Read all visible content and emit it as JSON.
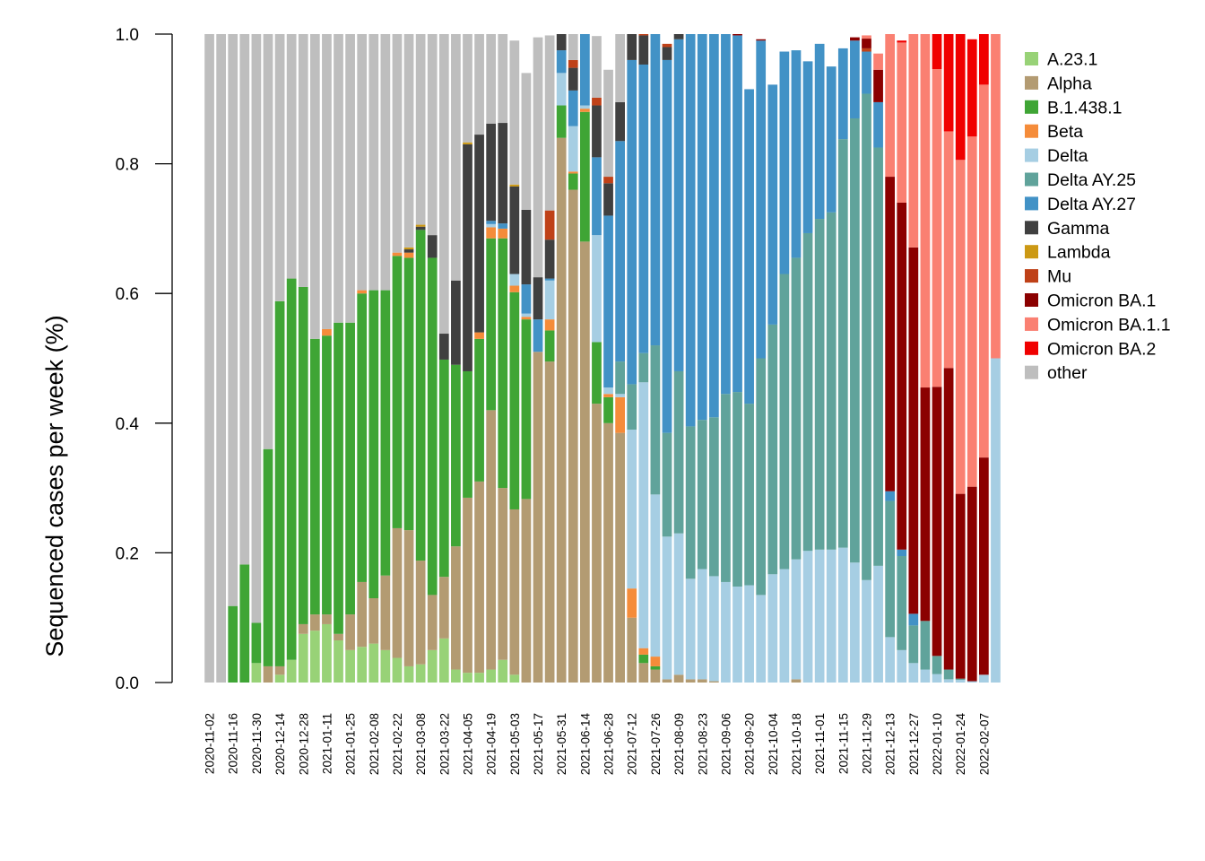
{
  "chart_data": {
    "type": "bar",
    "stacked": true,
    "ylabel": "Sequenced cases per week (%)",
    "xlabel": "",
    "ylim": [
      0,
      1
    ],
    "y_ticks": [
      "0.0",
      "0.2",
      "0.4",
      "0.6",
      "0.8",
      "1.0"
    ],
    "legend_position": "right",
    "x_tick_labels": [
      "2020-11-02",
      "2020-11-16",
      "2020-11-30",
      "2020-12-14",
      "2020-12-28",
      "2021-01-11",
      "2021-01-25",
      "2021-02-08",
      "2021-02-22",
      "2021-03-08",
      "2021-03-22",
      "2021-04-05",
      "2021-04-19",
      "2021-05-03",
      "2021-05-17",
      "2021-05-31",
      "2021-06-14",
      "2021-06-28",
      "2021-07-12",
      "2021-07-26",
      "2021-08-09",
      "2021-08-23",
      "2021-09-06",
      "2021-09-20",
      "2021-10-04",
      "2021-10-18",
      "2021-11-01",
      "2021-11-15",
      "2021-11-29",
      "2021-12-13",
      "2021-12-27",
      "2022-01-10",
      "2022-01-24",
      "2022-02-07"
    ],
    "categories": [
      "2020-11-02",
      "2020-11-09",
      "2020-11-16",
      "2020-11-23",
      "2020-11-30",
      "2020-12-07",
      "2020-12-14",
      "2020-12-21",
      "2020-12-28",
      "2021-01-04",
      "2021-01-11",
      "2021-01-18",
      "2021-01-25",
      "2021-02-01",
      "2021-02-08",
      "2021-02-15",
      "2021-02-22",
      "2021-03-01",
      "2021-03-08",
      "2021-03-15",
      "2021-03-22",
      "2021-03-29",
      "2021-04-05",
      "2021-04-12",
      "2021-04-19",
      "2021-04-26",
      "2021-05-03",
      "2021-05-10",
      "2021-05-17",
      "2021-05-24",
      "2021-05-31",
      "2021-06-07",
      "2021-06-14",
      "2021-06-21",
      "2021-06-28",
      "2021-07-05",
      "2021-07-12",
      "2021-07-19",
      "2021-07-26",
      "2021-08-02",
      "2021-08-09",
      "2021-08-16",
      "2021-08-23",
      "2021-08-30",
      "2021-09-06",
      "2021-09-13",
      "2021-09-20",
      "2021-09-27",
      "2021-10-04",
      "2021-10-11",
      "2021-10-18",
      "2021-10-25",
      "2021-11-01",
      "2021-11-08",
      "2021-11-15",
      "2021-11-22",
      "2021-11-29",
      "2021-12-06",
      "2021-12-13",
      "2021-12-20",
      "2021-12-27",
      "2022-01-03",
      "2022-01-10",
      "2022-01-17",
      "2022-01-24",
      "2022-01-31",
      "2022-02-07",
      "2022-02-14"
    ],
    "series": [
      {
        "name": "A.23.1",
        "color": "#98D277",
        "values": [
          0,
          0,
          0,
          0,
          0.03,
          0,
          0.012,
          0.035,
          0.075,
          0.08,
          0.09,
          0.065,
          0.05,
          0.055,
          0.06,
          0.05,
          0.038,
          0.025,
          0.028,
          0.05,
          0.068,
          0.02,
          0.015,
          0.015,
          0.02,
          0.035,
          0.012,
          0,
          0,
          0,
          0,
          0,
          0,
          0,
          0,
          0,
          0,
          0,
          0,
          0,
          0,
          0,
          0,
          0,
          0,
          0,
          0,
          0,
          0,
          0,
          0,
          0,
          0,
          0,
          0,
          0,
          0,
          0,
          0,
          0,
          0,
          0,
          0,
          0,
          0,
          0,
          0,
          0
        ]
      },
      {
        "name": "Alpha",
        "color": "#B39B72",
        "values": [
          0,
          0,
          0,
          0,
          0,
          0.025,
          0.013,
          0,
          0.015,
          0.025,
          0.015,
          0.01,
          0.055,
          0.1,
          0.07,
          0.115,
          0.2,
          0.21,
          0.16,
          0.085,
          0.095,
          0.19,
          0.27,
          0.295,
          0.4,
          0.265,
          0.255,
          0.283,
          0.51,
          0.495,
          0.84,
          0.76,
          0.68,
          0.43,
          0.4,
          0.385,
          0.1,
          0.03,
          0.02,
          0.005,
          0.012,
          0.005,
          0.005,
          0.002,
          0,
          0,
          0,
          0,
          0,
          0,
          0.005,
          0,
          0,
          0,
          0,
          0,
          0,
          0,
          0,
          0,
          0,
          0,
          0,
          0,
          0,
          0,
          0,
          0
        ]
      },
      {
        "name": "B.1.438.1",
        "color": "#3FA535",
        "values": [
          0,
          0,
          0.118,
          0.182,
          0.062,
          0.335,
          0.563,
          0.588,
          0.52,
          0.425,
          0.43,
          0.48,
          0.45,
          0.445,
          0.475,
          0.44,
          0.42,
          0.42,
          0.51,
          0.52,
          0.335,
          0.28,
          0.195,
          0.22,
          0.265,
          0.385,
          0.335,
          0.277,
          0,
          0.048,
          0.05,
          0.025,
          0.2,
          0.095,
          0.04,
          0,
          0,
          0.013,
          0.005,
          0,
          0,
          0,
          0,
          0,
          0,
          0,
          0,
          0,
          0,
          0,
          0,
          0,
          0,
          0,
          0,
          0,
          0,
          0,
          0,
          0,
          0,
          0,
          0,
          0,
          0,
          0,
          0,
          0
        ]
      },
      {
        "name": "Beta",
        "color": "#F58C3A",
        "values": [
          0,
          0,
          0,
          0,
          0,
          0,
          0,
          0,
          0,
          0,
          0.01,
          0,
          0,
          0.005,
          0,
          0,
          0.005,
          0.008,
          0,
          0,
          0,
          0,
          0,
          0.01,
          0.017,
          0.015,
          0.01,
          0.004,
          0,
          0.017,
          0,
          0.003,
          0.005,
          0,
          0.005,
          0.055,
          0.045,
          0.01,
          0.015,
          0,
          0,
          0,
          0,
          0,
          0,
          0,
          0,
          0,
          0,
          0,
          0,
          0,
          0,
          0,
          0,
          0,
          0,
          0,
          0,
          0,
          0,
          0,
          0,
          0,
          0,
          0,
          0,
          0
        ]
      },
      {
        "name": "Delta",
        "color": "#A6CEE3",
        "values": [
          0,
          0,
          0,
          0,
          0,
          0,
          0,
          0,
          0,
          0,
          0,
          0,
          0,
          0,
          0,
          0,
          0,
          0,
          0,
          0,
          0,
          0,
          0,
          0,
          0.005,
          0,
          0.018,
          0.005,
          0,
          0.06,
          0.05,
          0.07,
          0.005,
          0.165,
          0.01,
          0.005,
          0.245,
          0.41,
          0.25,
          0.22,
          0.218,
          0.155,
          0.17,
          0.162,
          0.155,
          0.148,
          0.15,
          0.135,
          0.167,
          0.175,
          0.185,
          0.203,
          0.205,
          0.205,
          0.208,
          0.185,
          0.158,
          0.18,
          0.07,
          0.05,
          0.03,
          0.02,
          0.013,
          0.005,
          0.004,
          0.002,
          0.012,
          0.5
        ]
      },
      {
        "name": "Delta AY.25",
        "color": "#60A39B",
        "values": [
          0,
          0,
          0,
          0,
          0,
          0,
          0,
          0,
          0,
          0,
          0,
          0,
          0,
          0,
          0,
          0,
          0,
          0,
          0,
          0,
          0,
          0,
          0,
          0,
          0,
          0,
          0,
          0,
          0,
          0,
          0,
          0,
          0,
          0,
          0,
          0.05,
          0.07,
          0.045,
          0.23,
          0.16,
          0.25,
          0.235,
          0.23,
          0.245,
          0.29,
          0.3,
          0.28,
          0.365,
          0.385,
          0.455,
          0.465,
          0.49,
          0.51,
          0.52,
          0.63,
          0.685,
          0.75,
          0.645,
          0.21,
          0.145,
          0.058,
          0.075,
          0.028,
          0.015,
          0.002,
          0,
          0,
          0
        ]
      },
      {
        "name": "Delta AY.27",
        "color": "#4292C6",
        "values": [
          0,
          0,
          0,
          0,
          0,
          0,
          0,
          0,
          0,
          0,
          0,
          0,
          0,
          0,
          0,
          0,
          0,
          0,
          0,
          0,
          0,
          0,
          0,
          0,
          0.005,
          0.008,
          0,
          0.045,
          0.05,
          0.003,
          0.035,
          0.055,
          0.11,
          0.12,
          0.265,
          0.34,
          0.5,
          0.445,
          0.485,
          0.575,
          0.512,
          0.605,
          0.6,
          0.597,
          0.555,
          0.55,
          0.485,
          0.49,
          0.37,
          0.343,
          0.32,
          0.265,
          0.27,
          0.225,
          0.14,
          0.12,
          0.065,
          0.07,
          0.015,
          0.01,
          0.018,
          0,
          0,
          0,
          0,
          0,
          0,
          0
        ]
      },
      {
        "name": "Gamma",
        "color": "#404040",
        "values": [
          0,
          0,
          0,
          0,
          0,
          0,
          0,
          0,
          0,
          0,
          0,
          0,
          0,
          0,
          0,
          0,
          0,
          0.005,
          0.005,
          0.035,
          0.04,
          0.13,
          0.35,
          0.305,
          0.15,
          0.155,
          0.135,
          0.115,
          0.065,
          0.06,
          0.045,
          0.035,
          0.045,
          0.08,
          0.05,
          0.06,
          0.045,
          0.045,
          0.025,
          0.02,
          0.012,
          0.003,
          0.005,
          0.003,
          0,
          0,
          0,
          0,
          0,
          0,
          0,
          0,
          0,
          0,
          0,
          0,
          0,
          0,
          0,
          0,
          0,
          0,
          0,
          0,
          0,
          0,
          0,
          0
        ]
      },
      {
        "name": "Lambda",
        "color": "#CC9914",
        "values": [
          0,
          0,
          0,
          0,
          0,
          0,
          0,
          0,
          0,
          0,
          0,
          0,
          0,
          0,
          0,
          0,
          0,
          0.003,
          0.003,
          0,
          0,
          0,
          0.003,
          0,
          0,
          0,
          0.003,
          0,
          0,
          0,
          0,
          0,
          0,
          0,
          0,
          0,
          0,
          0,
          0,
          0,
          0,
          0,
          0,
          0,
          0,
          0,
          0,
          0,
          0,
          0,
          0,
          0,
          0,
          0,
          0,
          0,
          0,
          0,
          0,
          0,
          0,
          0,
          0,
          0,
          0,
          0,
          0,
          0
        ]
      },
      {
        "name": "Mu",
        "color": "#BF4118",
        "values": [
          0,
          0,
          0,
          0,
          0,
          0,
          0,
          0,
          0,
          0,
          0,
          0,
          0,
          0,
          0,
          0,
          0,
          0,
          0,
          0,
          0,
          0,
          0,
          0,
          0,
          0,
          0,
          0,
          0,
          0.045,
          0,
          0.012,
          0.005,
          0.012,
          0.01,
          0,
          0,
          0.003,
          0.005,
          0.005,
          0,
          0,
          0,
          0,
          0,
          0,
          0,
          0,
          0,
          0,
          0,
          0,
          0,
          0,
          0,
          0,
          0.005,
          0,
          0,
          0,
          0,
          0,
          0,
          0,
          0,
          0,
          0,
          0
        ]
      },
      {
        "name": "Omicron BA.1",
        "color": "#8B0000",
        "values": [
          0,
          0,
          0,
          0,
          0,
          0,
          0,
          0,
          0,
          0,
          0,
          0,
          0,
          0,
          0,
          0,
          0,
          0,
          0,
          0,
          0,
          0,
          0,
          0,
          0,
          0,
          0,
          0,
          0,
          0,
          0,
          0,
          0,
          0,
          0,
          0,
          0,
          0,
          0,
          0,
          0,
          0,
          0,
          0,
          0,
          0.003,
          0,
          0.002,
          0,
          0,
          0,
          0,
          0,
          0,
          0,
          0.005,
          0.015,
          0.05,
          0.485,
          0.535,
          0.565,
          0.36,
          0.415,
          0.465,
          0.285,
          0.3,
          0.335,
          0
        ]
      },
      {
        "name": "Omicron BA.1.1",
        "color": "#FA8072",
        "values": [
          0,
          0,
          0,
          0,
          0,
          0,
          0,
          0,
          0,
          0,
          0,
          0,
          0,
          0,
          0,
          0,
          0,
          0,
          0,
          0,
          0,
          0,
          0,
          0,
          0,
          0,
          0,
          0,
          0,
          0,
          0,
          0,
          0,
          0,
          0,
          0,
          0,
          0,
          0,
          0,
          0,
          0,
          0,
          0,
          0,
          0,
          0,
          0,
          0,
          0,
          0,
          0,
          0,
          0,
          0,
          0,
          0.005,
          0.025,
          0.24,
          0.247,
          0.348,
          0.545,
          0.49,
          0.365,
          0.515,
          0.54,
          0.575,
          0.5
        ]
      },
      {
        "name": "Omicron BA.2",
        "color": "#F00000",
        "values": [
          0,
          0,
          0,
          0,
          0,
          0,
          0,
          0,
          0,
          0,
          0,
          0,
          0,
          0,
          0,
          0,
          0,
          0,
          0,
          0,
          0,
          0,
          0,
          0,
          0,
          0,
          0,
          0,
          0,
          0,
          0,
          0,
          0,
          0,
          0,
          0,
          0,
          0,
          0,
          0,
          0,
          0,
          0,
          0,
          0,
          0,
          0,
          0,
          0,
          0,
          0,
          0,
          0,
          0,
          0,
          0,
          0,
          0,
          0,
          0.003,
          0.003,
          0.002,
          0.054,
          0.15,
          0.194,
          0.15,
          0.078,
          0
        ]
      },
      {
        "name": "other",
        "color": "#BEBEBE",
        "values": [
          1,
          1,
          0.882,
          0.818,
          0.908,
          0.64,
          0.412,
          0.377,
          0.39,
          0.47,
          0.455,
          0.445,
          0.445,
          0.395,
          0.395,
          0.395,
          0.337,
          0.329,
          0.294,
          0.31,
          0.462,
          0.38,
          0.167,
          0.155,
          0.138,
          0.137,
          0.222,
          0.211,
          0.37,
          0.27,
          0.07,
          0.04,
          0.045,
          0.095,
          0.165,
          0.105,
          0.04,
          0.0,
          0.035,
          0.0,
          0.0,
          0.0,
          0.0,
          0.0,
          0.0,
          0.0,
          0.0,
          0.0,
          0.0,
          0.0,
          0.0,
          0.0,
          0.0,
          0.0,
          0.0,
          0.0,
          0.0,
          0.0,
          0.0,
          0.0,
          0.0,
          0.0,
          0.0,
          0.0,
          0.0,
          0.0,
          0.0,
          0.0
        ]
      }
    ]
  }
}
